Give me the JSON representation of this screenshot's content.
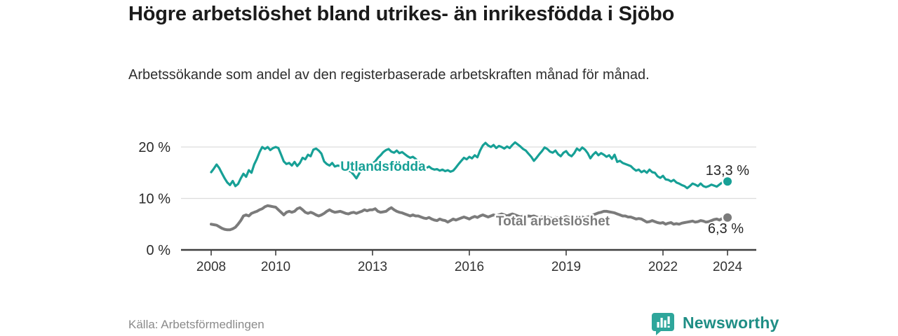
{
  "header": {
    "title": "Högre arbetslöshet bland utrikes- än inrikesfödda i Sjöbo",
    "subtitle": "Arbetssökande som andel av den registerbaserade arbetskraften månad för månad."
  },
  "footer": {
    "source": "Källa: Arbetsförmedlingen",
    "brand_name": "Newsworthy"
  },
  "colors": {
    "accent_teal": "#17a096",
    "series_gray": "#7b7b7b",
    "value_label_dark": "#262626",
    "grid_gray": "#dcdcdc",
    "axis_dark": "#3f3f3f",
    "brand_icon_teal": "#2ea69b",
    "brand_text_teal": "#1f8e85"
  },
  "chart_data": {
    "type": "line",
    "title": "Högre arbetslöshet bland utrikes- än inrikesfödda i Sjöbo",
    "subtitle": "Arbetssökande som andel av den registerbaserade arbetskraften månad för månad.",
    "frequency": "monthly",
    "x_start": "2008-01",
    "x_end": "2024-01",
    "xlim": [
      2008,
      2024.9
    ],
    "ylim": [
      0,
      22
    ],
    "grid": "horizontal-only",
    "legend_position": "inline-labels-on-lines",
    "x_ticks": [
      {
        "year": 2008,
        "label": "2008"
      },
      {
        "year": 2010,
        "label": "2010"
      },
      {
        "year": 2013,
        "label": "2013"
      },
      {
        "year": 2016,
        "label": "2016"
      },
      {
        "year": 2019,
        "label": "2019"
      },
      {
        "year": 2022,
        "label": "2022"
      },
      {
        "year": 2024,
        "label": "2024"
      }
    ],
    "y_ticks": [
      {
        "value": 0,
        "label": "0 %"
      },
      {
        "value": 10,
        "label": "10 %"
      },
      {
        "value": 20,
        "label": "20 %"
      }
    ],
    "series": [
      {
        "name": "Utlandsfödda",
        "color": "#17a096",
        "end_value": 13.3,
        "end_label": "13,3 %",
        "values": [
          15.1,
          15.8,
          16.6,
          15.9,
          14.9,
          13.9,
          13.1,
          12.6,
          13.4,
          12.4,
          12.8,
          13.9,
          14.8,
          14.2,
          15.5,
          15.0,
          16.6,
          17.7,
          19.0,
          20.0,
          19.6,
          20.0,
          19.4,
          19.8,
          20.0,
          19.8,
          18.5,
          17.2,
          16.7,
          16.9,
          16.4,
          17.1,
          16.3,
          16.9,
          17.9,
          17.6,
          18.5,
          18.2,
          19.5,
          19.7,
          19.3,
          18.7,
          17.2,
          16.7,
          16.4,
          16.9,
          16.2,
          16.4,
          16.3,
          16.0,
          15.7,
          15.4,
          15.2,
          14.6,
          13.9,
          14.8,
          15.8,
          16.2,
          16.4,
          16.6,
          16.8,
          17.2,
          17.9,
          18.4,
          19.0,
          19.4,
          19.6,
          19.1,
          18.9,
          19.3,
          18.8,
          19.0,
          18.6,
          18.2,
          17.9,
          18.1,
          17.7,
          17.2,
          16.5,
          16.1,
          15.9,
          16.2,
          15.8,
          15.6,
          15.7,
          15.4,
          15.6,
          15.3,
          15.5,
          15.2,
          15.4,
          16.0,
          16.7,
          17.3,
          17.9,
          17.6,
          18.1,
          17.8,
          18.4,
          18.0,
          19.3,
          20.3,
          20.8,
          20.3,
          20.0,
          20.4,
          19.8,
          20.2,
          20.0,
          19.7,
          20.1,
          19.8,
          20.4,
          20.9,
          20.5,
          20.1,
          19.6,
          19.3,
          18.7,
          18.1,
          17.3,
          17.9,
          18.6,
          19.2,
          19.9,
          19.6,
          19.1,
          18.9,
          19.3,
          18.6,
          18.2,
          18.9,
          19.2,
          18.5,
          18.2,
          18.8,
          19.7,
          19.3,
          19.9,
          19.5,
          18.8,
          17.8,
          18.5,
          19.0,
          18.4,
          18.8,
          18.5,
          18.1,
          18.4,
          17.7,
          18.5,
          17.1,
          17.3,
          16.9,
          16.7,
          16.5,
          16.3,
          15.8,
          15.4,
          15.6,
          15.1,
          15.4,
          15.0,
          15.6,
          15.1,
          15.0,
          14.3,
          14.0,
          14.4,
          13.7,
          13.6,
          13.3,
          13.6,
          13.1,
          12.9,
          12.6,
          12.4,
          12.0,
          12.4,
          12.9,
          12.7,
          12.4,
          12.9,
          12.4,
          12.2,
          12.4,
          12.7,
          12.5,
          12.3,
          12.7,
          13.1,
          12.9,
          13.3
        ]
      },
      {
        "name": "Total arbetslöshet",
        "color": "#7b7b7b",
        "end_value": 6.3,
        "end_label": "6,3 %",
        "values": [
          5.0,
          4.9,
          4.8,
          4.5,
          4.2,
          4.0,
          3.9,
          3.9,
          4.1,
          4.4,
          5.0,
          5.7,
          6.6,
          6.8,
          6.6,
          7.1,
          7.3,
          7.5,
          7.8,
          8.0,
          8.4,
          8.6,
          8.5,
          8.4,
          8.3,
          7.8,
          7.3,
          6.8,
          7.3,
          7.5,
          7.3,
          7.5,
          8.0,
          8.2,
          7.8,
          7.3,
          7.1,
          7.3,
          7.1,
          6.8,
          6.6,
          6.8,
          7.1,
          7.5,
          7.8,
          7.5,
          7.3,
          7.4,
          7.5,
          7.3,
          7.1,
          7.0,
          7.2,
          7.3,
          7.1,
          7.3,
          7.5,
          7.8,
          7.6,
          7.8,
          7.8,
          8.0,
          7.5,
          7.3,
          7.4,
          7.5,
          7.9,
          8.2,
          7.8,
          7.5,
          7.3,
          7.2,
          7.0,
          6.8,
          6.6,
          6.8,
          6.6,
          6.6,
          6.4,
          6.2,
          6.1,
          6.3,
          6.0,
          5.8,
          5.7,
          6.0,
          5.8,
          5.7,
          5.4,
          5.7,
          6.0,
          5.8,
          6.0,
          6.2,
          6.4,
          6.2,
          6.0,
          6.3,
          6.5,
          6.3,
          6.6,
          6.8,
          6.6,
          6.4,
          6.6,
          6.8,
          6.6,
          6.8,
          7.0,
          6.8,
          6.6,
          6.8,
          7.0,
          6.8,
          6.6,
          6.4,
          6.6,
          6.4,
          6.6,
          6.5,
          6.6,
          6.4,
          6.2,
          6.4,
          6.6,
          6.4,
          6.2,
          6.1,
          6.3,
          6.2,
          6.4,
          6.3,
          6.5,
          6.3,
          6.2,
          6.4,
          6.3,
          6.5,
          6.4,
          6.2,
          6.4,
          6.6,
          6.8,
          7.0,
          7.2,
          7.3,
          7.5,
          7.5,
          7.4,
          7.3,
          7.2,
          7.0,
          6.8,
          6.6,
          6.6,
          6.4,
          6.4,
          6.2,
          6.0,
          6.1,
          6.0,
          5.7,
          5.4,
          5.5,
          5.7,
          5.5,
          5.3,
          5.2,
          5.3,
          5.0,
          5.2,
          5.3,
          5.0,
          5.1,
          5.0,
          5.2,
          5.3,
          5.4,
          5.5,
          5.6,
          5.4,
          5.5,
          5.7,
          5.6,
          5.4,
          5.5,
          5.7,
          5.9,
          6.0,
          5.8,
          6.1,
          6.2,
          6.3
        ]
      }
    ]
  }
}
